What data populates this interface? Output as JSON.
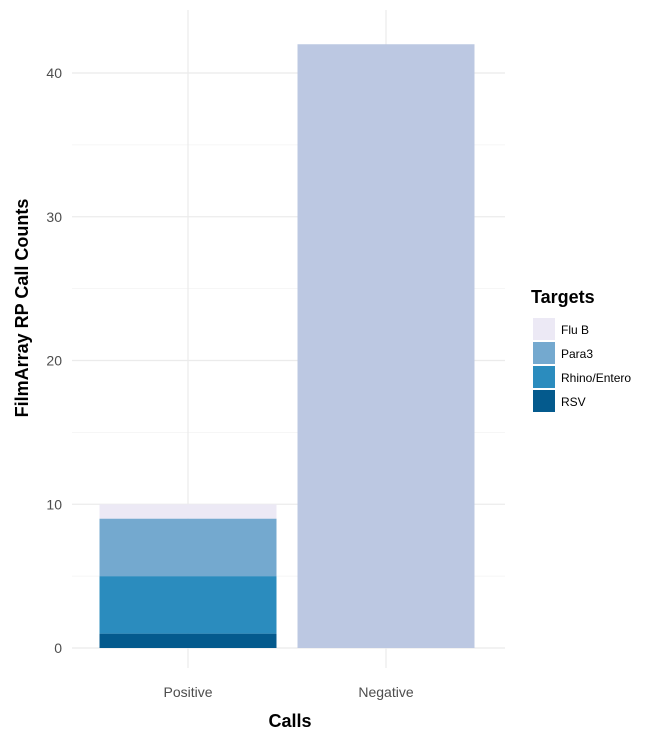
{
  "chart_data": {
    "type": "bar",
    "stacked": true,
    "xlabel": "Calls",
    "ylabel": "FilmArray RP Call Counts",
    "categories": [
      "Positive",
      "Negative"
    ],
    "ylim": [
      0,
      42
    ],
    "yticks": [
      0,
      10,
      20,
      30,
      40
    ],
    "grid": true,
    "legend": {
      "title": "Targets",
      "placement": "right",
      "entries": [
        {
          "label": "Flu B",
          "color": "#ece9f5"
        },
        {
          "label": "Para3",
          "color": "#74a9cf"
        },
        {
          "label": "Rhino/Entero",
          "color": "#2b8cbe"
        },
        {
          "label": "RSV",
          "color": "#045a8d"
        }
      ]
    },
    "stack_order_bottom_to_top": [
      "RSV",
      "Rhino/Entero",
      "Para3",
      "Flu B"
    ],
    "series": [
      {
        "name": "RSV",
        "color": "#045a8d",
        "values": [
          1,
          0
        ]
      },
      {
        "name": "Rhino/Entero",
        "color": "#2b8cbe",
        "values": [
          4,
          0
        ]
      },
      {
        "name": "Para3",
        "color": "#74a9cf",
        "values": [
          4,
          0
        ]
      },
      {
        "name": "Flu B",
        "color": "#ece9f5",
        "values": [
          1,
          0
        ]
      }
    ],
    "negative_bar": {
      "value": 42,
      "color": "#bcc8e2"
    }
  }
}
